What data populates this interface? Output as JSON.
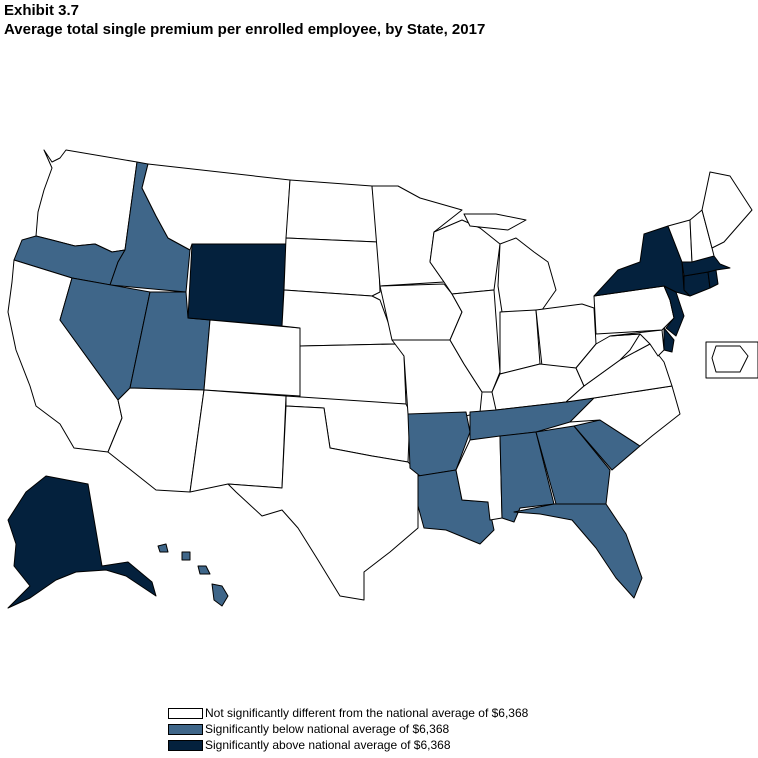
{
  "header": {
    "exhibit": "Exhibit 3.7",
    "title": "Average total single premium per enrolled employee, by State, 2017"
  },
  "colors": {
    "not_different": "#ffffff",
    "below": "#3f6689",
    "above": "#04213d"
  },
  "legend": {
    "items": [
      {
        "label": "Not significantly different from the national average of  $6,368",
        "category": "not_different"
      },
      {
        "label": "Significantly below national average of  $6,368",
        "category": "below"
      },
      {
        "label": "Significantly above national average of  $6,368",
        "category": "above"
      }
    ]
  },
  "states": [
    {
      "id": "WA",
      "category": "not_different"
    },
    {
      "id": "OR",
      "category": "below"
    },
    {
      "id": "CA",
      "category": "not_different"
    },
    {
      "id": "ID",
      "category": "below"
    },
    {
      "id": "NV",
      "category": "below"
    },
    {
      "id": "UT",
      "category": "below"
    },
    {
      "id": "AZ",
      "category": "not_different"
    },
    {
      "id": "MT",
      "category": "not_different"
    },
    {
      "id": "WY",
      "category": "above"
    },
    {
      "id": "CO",
      "category": "not_different"
    },
    {
      "id": "NM",
      "category": "not_different"
    },
    {
      "id": "ND",
      "category": "not_different"
    },
    {
      "id": "SD",
      "category": "not_different"
    },
    {
      "id": "NE",
      "category": "not_different"
    },
    {
      "id": "KS",
      "category": "not_different"
    },
    {
      "id": "OK",
      "category": "not_different"
    },
    {
      "id": "TX",
      "category": "not_different"
    },
    {
      "id": "MN",
      "category": "not_different"
    },
    {
      "id": "IA",
      "category": "not_different"
    },
    {
      "id": "MO",
      "category": "not_different"
    },
    {
      "id": "AR",
      "category": "below"
    },
    {
      "id": "LA",
      "category": "below"
    },
    {
      "id": "WI",
      "category": "not_different"
    },
    {
      "id": "IL",
      "category": "not_different"
    },
    {
      "id": "MI",
      "category": "not_different"
    },
    {
      "id": "IN",
      "category": "not_different"
    },
    {
      "id": "OH",
      "category": "not_different"
    },
    {
      "id": "KY",
      "category": "not_different"
    },
    {
      "id": "TN",
      "category": "below"
    },
    {
      "id": "MS",
      "category": "not_different"
    },
    {
      "id": "AL",
      "category": "below"
    },
    {
      "id": "GA",
      "category": "below"
    },
    {
      "id": "FL",
      "category": "below"
    },
    {
      "id": "SC",
      "category": "below"
    },
    {
      "id": "NC",
      "category": "not_different"
    },
    {
      "id": "VA",
      "category": "not_different"
    },
    {
      "id": "WV",
      "category": "not_different"
    },
    {
      "id": "MD",
      "category": "not_different"
    },
    {
      "id": "DE",
      "category": "above"
    },
    {
      "id": "PA",
      "category": "not_different"
    },
    {
      "id": "NJ",
      "category": "above"
    },
    {
      "id": "NY",
      "category": "above"
    },
    {
      "id": "CT",
      "category": "above"
    },
    {
      "id": "RI",
      "category": "above"
    },
    {
      "id": "MA",
      "category": "above"
    },
    {
      "id": "VT",
      "category": "not_different"
    },
    {
      "id": "NH",
      "category": "not_different"
    },
    {
      "id": "ME",
      "category": "not_different"
    },
    {
      "id": "AK",
      "category": "above"
    },
    {
      "id": "HI",
      "category": "below"
    },
    {
      "id": "DC",
      "category": "not_different"
    }
  ]
}
